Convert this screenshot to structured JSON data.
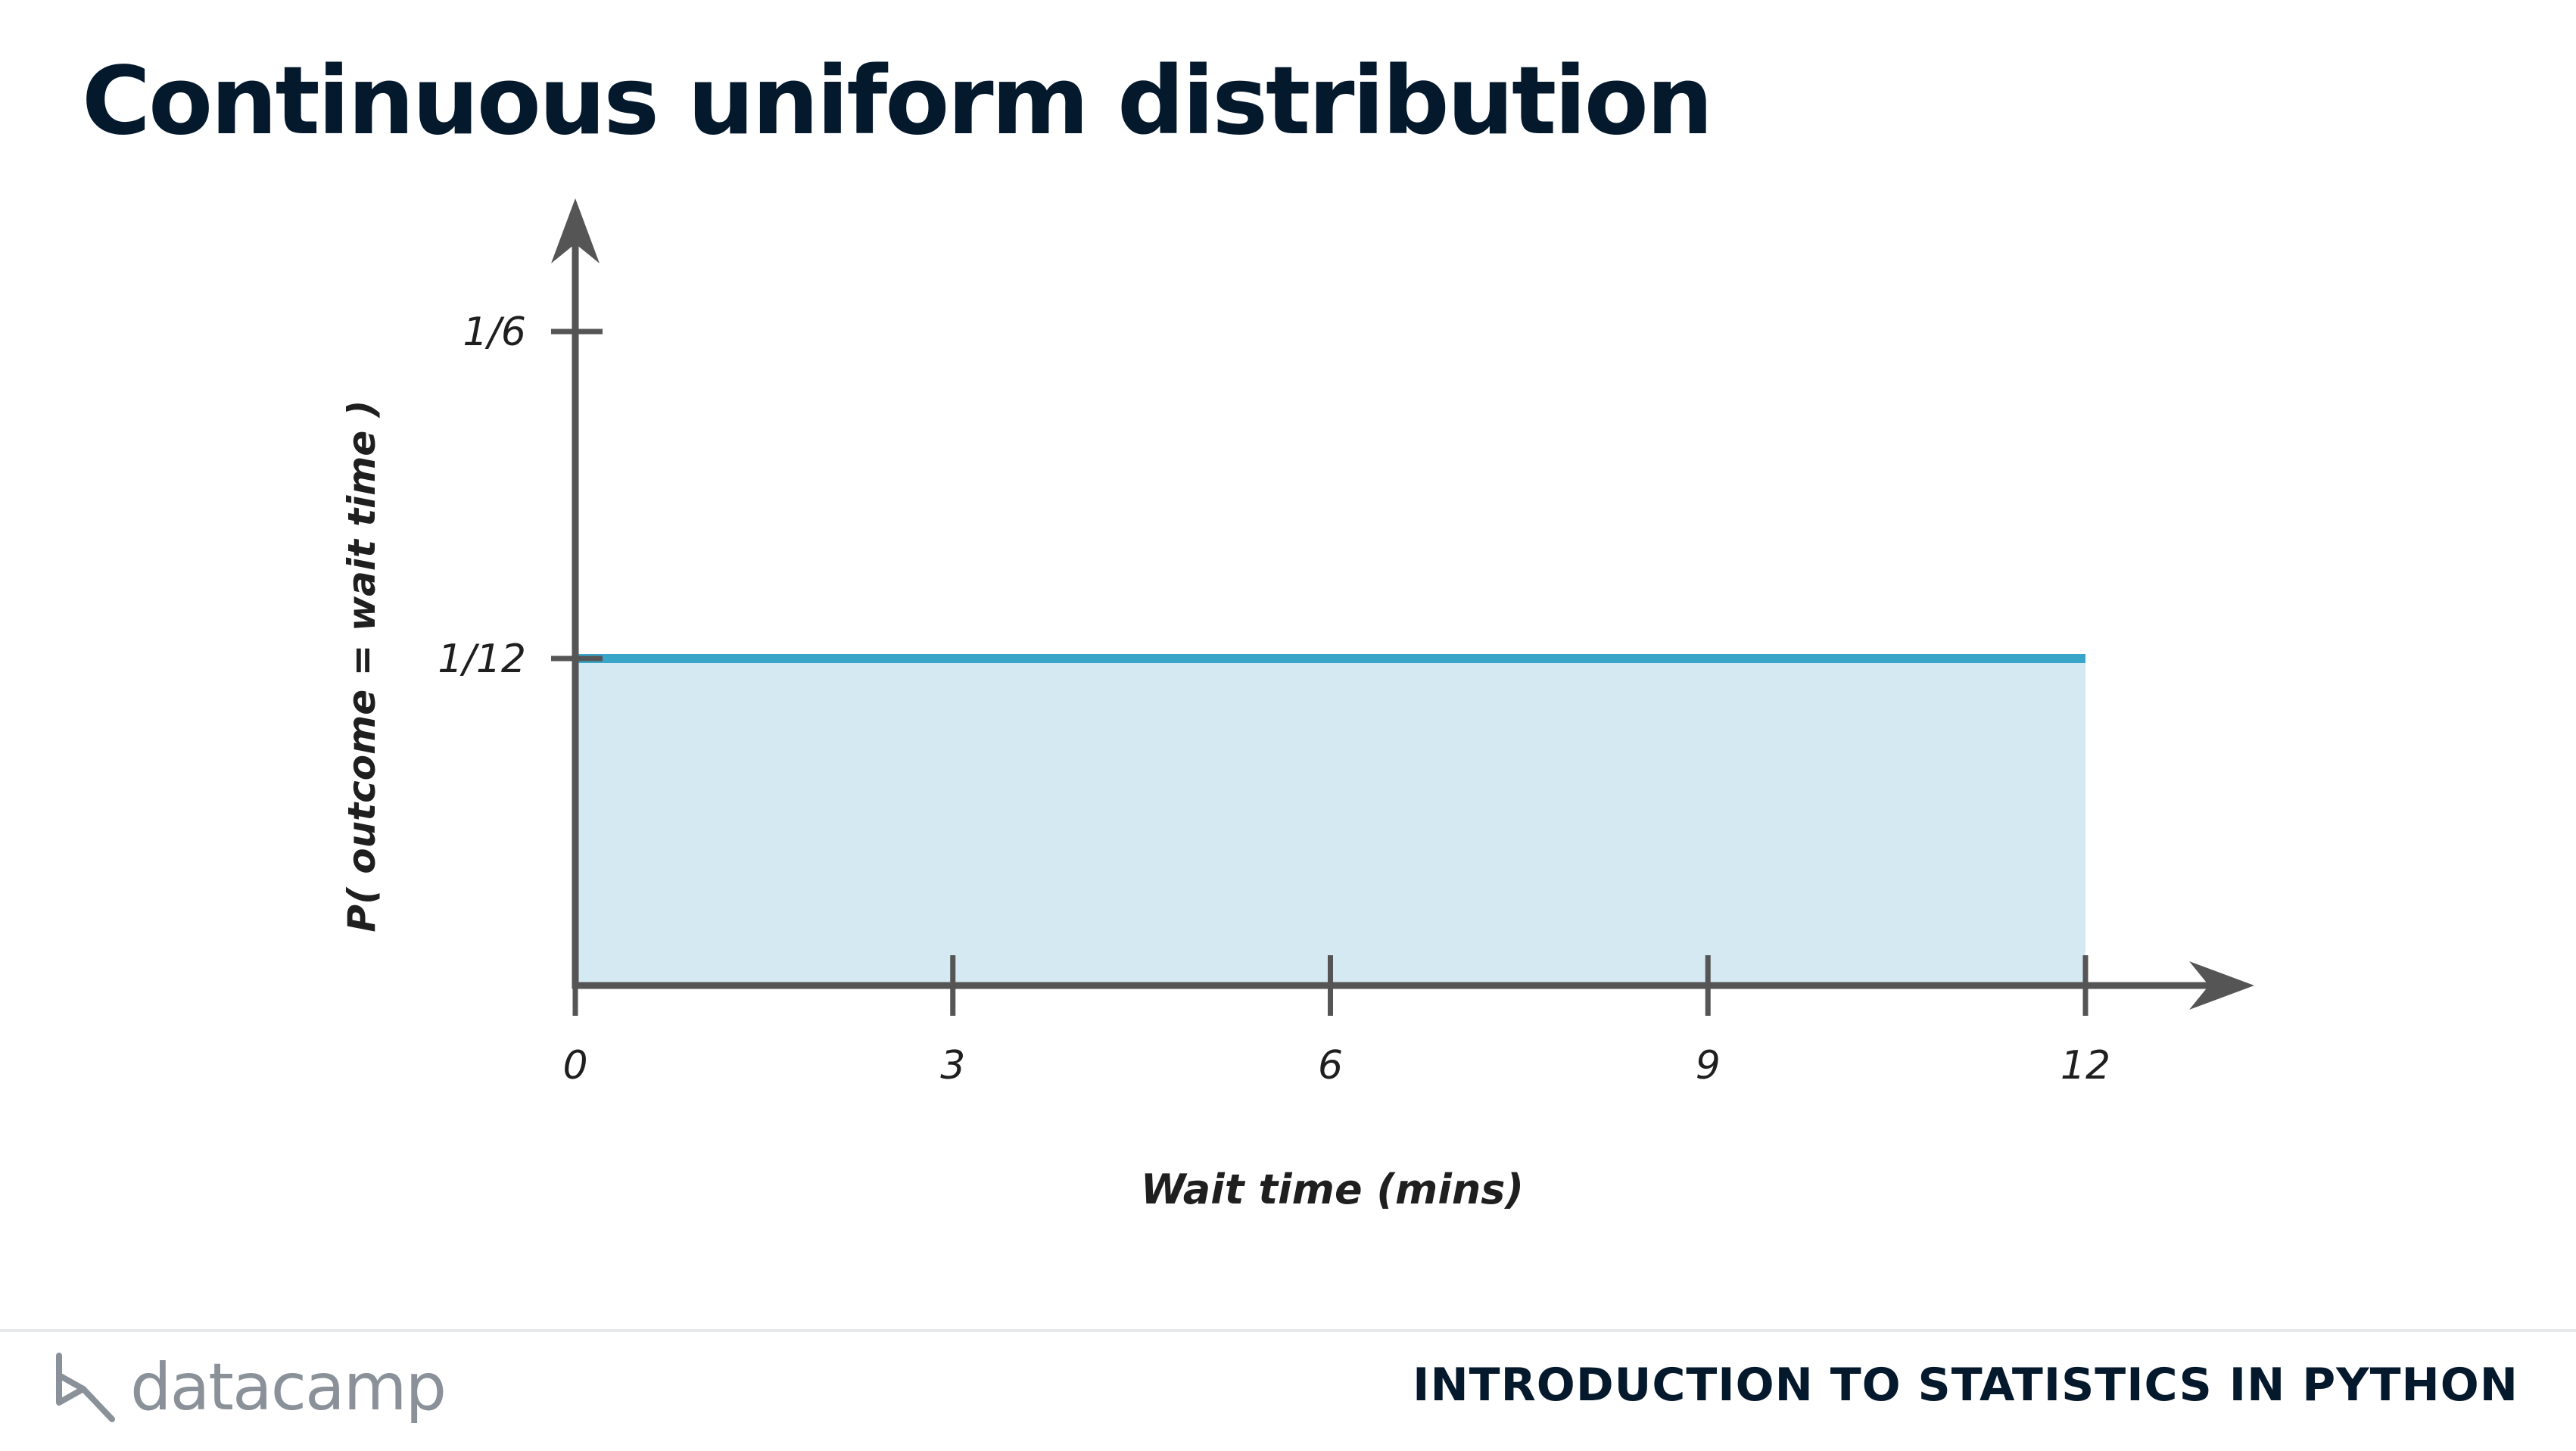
{
  "slide": {
    "title": "Continuous uniform distribution"
  },
  "chart_data": {
    "type": "area",
    "x": [
      0,
      12
    ],
    "values": [
      0.08333,
      0.08333
    ],
    "xlabel": "Wait time (mins)",
    "ylabel": "P( outcome = wait time )",
    "x_ticks": [
      0,
      3,
      6,
      9,
      12
    ],
    "x_tick_labels": [
      "0",
      "3",
      "6",
      "9",
      "12"
    ],
    "y_ticks": [
      0.08333,
      0.16667
    ],
    "y_tick_labels": [
      "1/12",
      "1/6"
    ],
    "xlim": [
      0,
      12
    ],
    "ylim": [
      0,
      0.16667
    ],
    "grid": false,
    "colors": {
      "line": "#39a5c8",
      "fill": "#d5e9f3",
      "axis": "#555555"
    }
  },
  "footer": {
    "brand": "datacamp",
    "course": "INTRODUCTION TO STATISTICS IN PYTHON"
  }
}
